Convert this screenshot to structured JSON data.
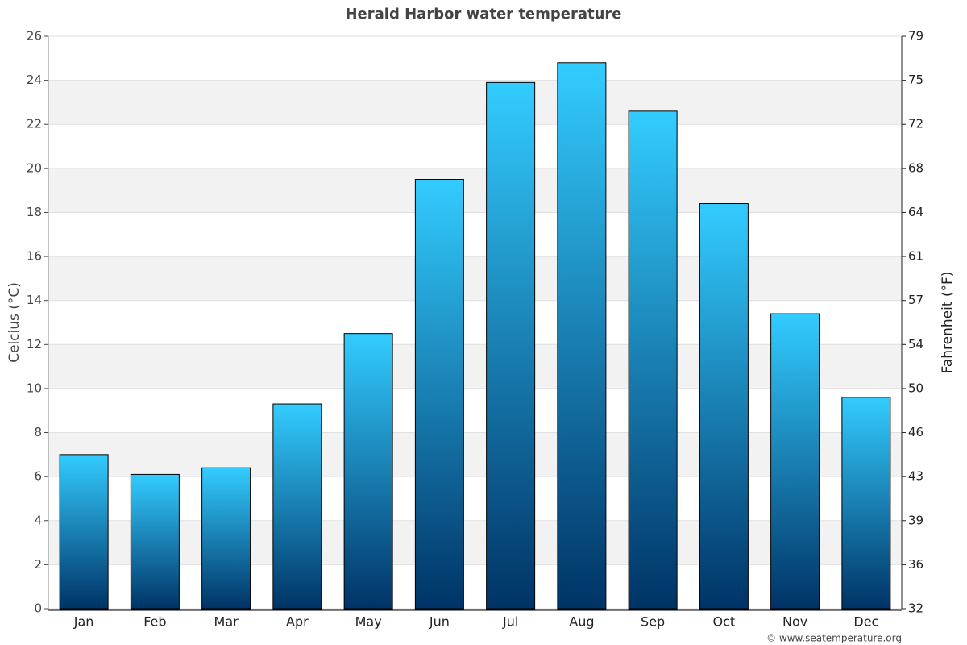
{
  "chart_data": {
    "type": "bar",
    "title": "Herald Harbor water temperature",
    "y_label": "Celcius (°C)",
    "y2_label": "Fahrenheit (°F)",
    "credit": "© www.seatemperature.org",
    "categories": [
      "Jan",
      "Feb",
      "Mar",
      "Apr",
      "May",
      "Jun",
      "Jul",
      "Aug",
      "Sep",
      "Oct",
      "Nov",
      "Dec"
    ],
    "values": [
      7.0,
      6.1,
      6.4,
      9.3,
      12.5,
      19.5,
      23.9,
      24.8,
      22.6,
      18.4,
      13.4,
      9.6
    ],
    "color": {
      "top": "#33ccff",
      "bottom": "#003366"
    },
    "ylim": [
      0,
      26
    ],
    "yticks": [
      0,
      2,
      4,
      6,
      8,
      10,
      12,
      14,
      16,
      18,
      20,
      22,
      24,
      26
    ],
    "y2lim": [
      32,
      78.8
    ],
    "y2ticks": [
      32,
      {
        "value": 35.6,
        "label": "36"
      },
      {
        "value": 39.2,
        "label": "39"
      },
      {
        "value": 42.8,
        "label": "43"
      },
      {
        "value": 46.4,
        "label": "46"
      },
      50,
      {
        "value": 53.6,
        "label": "54"
      },
      {
        "value": 57.2,
        "label": "57"
      },
      {
        "value": 60.8,
        "label": "61"
      },
      {
        "value": 64.4,
        "label": "64"
      },
      68,
      {
        "value": 71.6,
        "label": "72"
      },
      {
        "value": 75.2,
        "label": "75"
      },
      {
        "value": 78.8,
        "label": "79"
      }
    ],
    "grid": true,
    "band_color": "#f2f2f2"
  }
}
